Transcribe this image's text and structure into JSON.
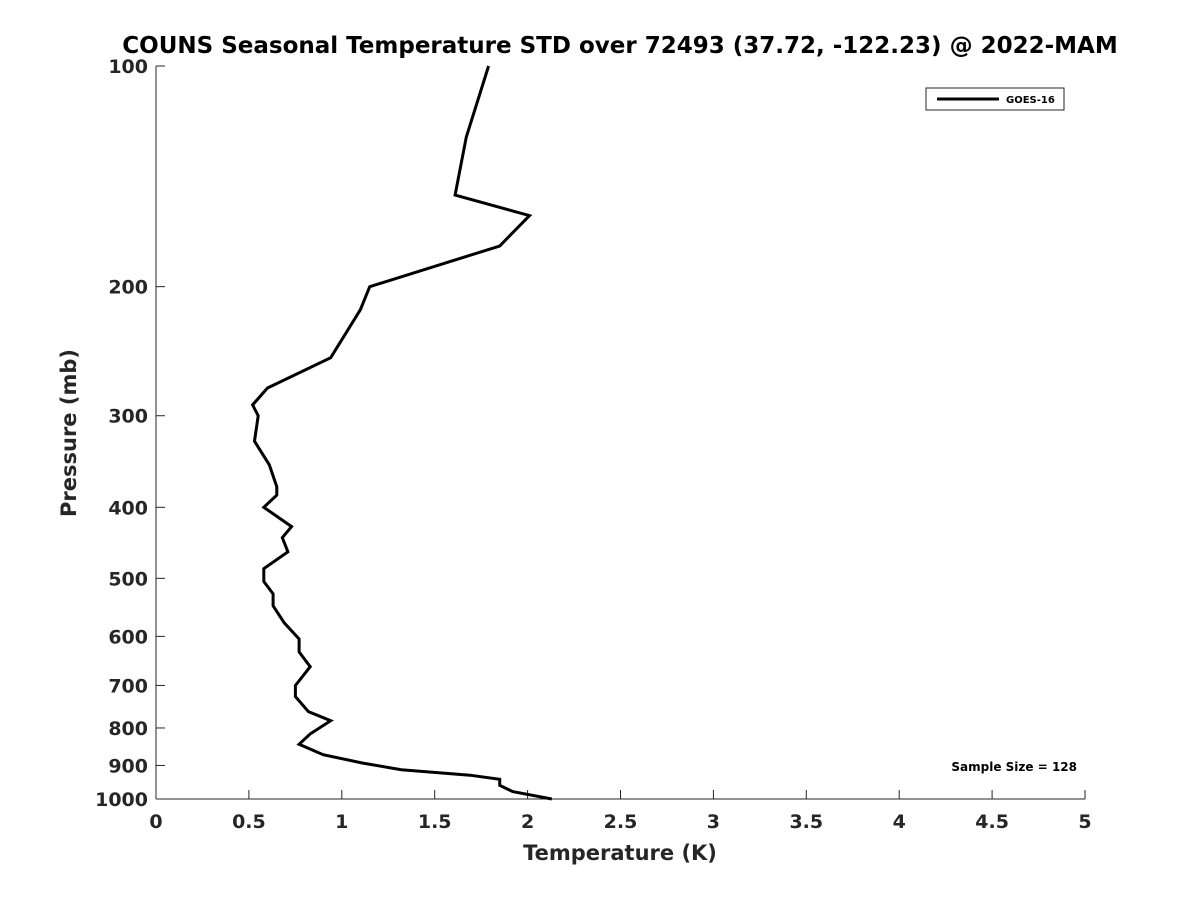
{
  "chart_data": {
    "type": "line",
    "title": "COUNS Seasonal Temperature STD over 72493 (37.72, -122.23) @ 2022-MAM",
    "xlabel": "Temperature (K)",
    "ylabel": "Pressure (mb)",
    "xlim": [
      0,
      5
    ],
    "ylim": [
      100,
      1000
    ],
    "y_scale": "log",
    "y_reversed": true,
    "x_ticks": [
      "0",
      "0.5",
      "1",
      "1.5",
      "2",
      "2.5",
      "3",
      "3.5",
      "4",
      "4.5",
      "5"
    ],
    "y_ticks": [
      "100",
      "200",
      "300",
      "400",
      "500",
      "600",
      "700",
      "800",
      "900",
      "1000"
    ],
    "grid": false,
    "legend_position": "top-right",
    "annotation": "Sample Size = 128",
    "series": [
      {
        "name": "GOES-16",
        "color": "#000000",
        "points": [
          [
            1.79,
            100
          ],
          [
            1.67,
            125
          ],
          [
            1.61,
            150
          ],
          [
            2.01,
            160
          ],
          [
            1.85,
            176
          ],
          [
            1.15,
            200
          ],
          [
            1.1,
            215
          ],
          [
            0.94,
            250
          ],
          [
            0.6,
            275
          ],
          [
            0.52,
            290
          ],
          [
            0.55,
            300
          ],
          [
            0.53,
            325
          ],
          [
            0.61,
            350
          ],
          [
            0.65,
            375
          ],
          [
            0.65,
            385
          ],
          [
            0.58,
            400
          ],
          [
            0.73,
            425
          ],
          [
            0.68,
            440
          ],
          [
            0.71,
            460
          ],
          [
            0.58,
            485
          ],
          [
            0.58,
            505
          ],
          [
            0.63,
            525
          ],
          [
            0.63,
            545
          ],
          [
            0.69,
            575
          ],
          [
            0.77,
            605
          ],
          [
            0.77,
            630
          ],
          [
            0.83,
            660
          ],
          [
            0.75,
            700
          ],
          [
            0.75,
            725
          ],
          [
            0.82,
            760
          ],
          [
            0.94,
            782
          ],
          [
            0.83,
            815
          ],
          [
            0.77,
            842
          ],
          [
            0.9,
            870
          ],
          [
            1.11,
            893
          ],
          [
            1.32,
            912
          ],
          [
            1.69,
            928
          ],
          [
            1.85,
            940
          ],
          [
            1.85,
            958
          ],
          [
            1.92,
            977
          ],
          [
            2.13,
            1000
          ]
        ]
      }
    ]
  }
}
